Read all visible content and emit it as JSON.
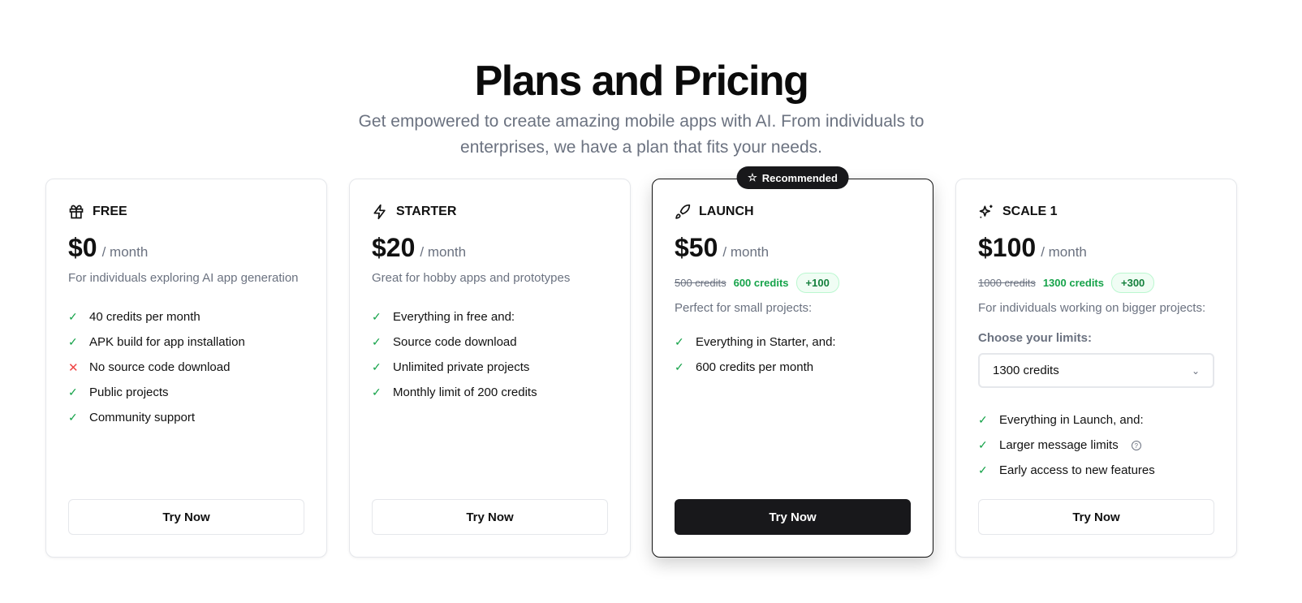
{
  "header": {
    "title": "Plans and Pricing",
    "subtitle": "Get empowered to create amazing mobile apps with AI. From individuals to enterprises, we have a plan that fits your needs."
  },
  "plans": [
    {
      "name": "FREE",
      "icon": "gift-icon",
      "price": "$0",
      "period": "/ month",
      "description": "For individuals exploring AI app generation",
      "features": [
        {
          "text": "40 credits per month",
          "included": true
        },
        {
          "text": "APK build for app installation",
          "included": true
        },
        {
          "text": "No source code download",
          "included": false
        },
        {
          "text": "Public projects",
          "included": true
        },
        {
          "text": "Community support",
          "included": true
        }
      ],
      "button": "Try Now"
    },
    {
      "name": "STARTER",
      "icon": "zap-icon",
      "price": "$20",
      "period": "/ month",
      "description": "Great for hobby apps and prototypes",
      "features": [
        {
          "text": "Everything in free and:",
          "included": true
        },
        {
          "text": "Source code download",
          "included": true
        },
        {
          "text": "Unlimited private projects",
          "included": true
        },
        {
          "text": "Monthly limit of 200 credits",
          "included": true
        }
      ],
      "button": "Try Now"
    },
    {
      "name": "LAUNCH",
      "icon": "rocket-icon",
      "badge": "Recommended",
      "price": "$50",
      "period": "/ month",
      "old_credits": "500 credits",
      "new_credits": "600 credits",
      "bonus": "+100",
      "description": "Perfect for small projects:",
      "features": [
        {
          "text": "Everything in Starter, and:",
          "included": true
        },
        {
          "text": "600 credits per month",
          "included": true
        }
      ],
      "button": "Try Now"
    },
    {
      "name": "SCALE 1",
      "icon": "sparkles-icon",
      "price": "$100",
      "period": "/ month",
      "old_credits": "1000 credits",
      "new_credits": "1300 credits",
      "bonus": "+300",
      "description": "For individuals working on bigger projects:",
      "limits_label": "Choose your limits:",
      "limits_value": "1300 credits",
      "features": [
        {
          "text": "Everything in Launch, and:",
          "included": true
        },
        {
          "text": "Larger message limits",
          "included": true
        },
        {
          "text": "Early access to new features",
          "included": true
        }
      ],
      "button": "Try Now"
    }
  ],
  "colors": {
    "accent": "#18181b",
    "check": "#16a34a",
    "cross": "#ef4444"
  }
}
